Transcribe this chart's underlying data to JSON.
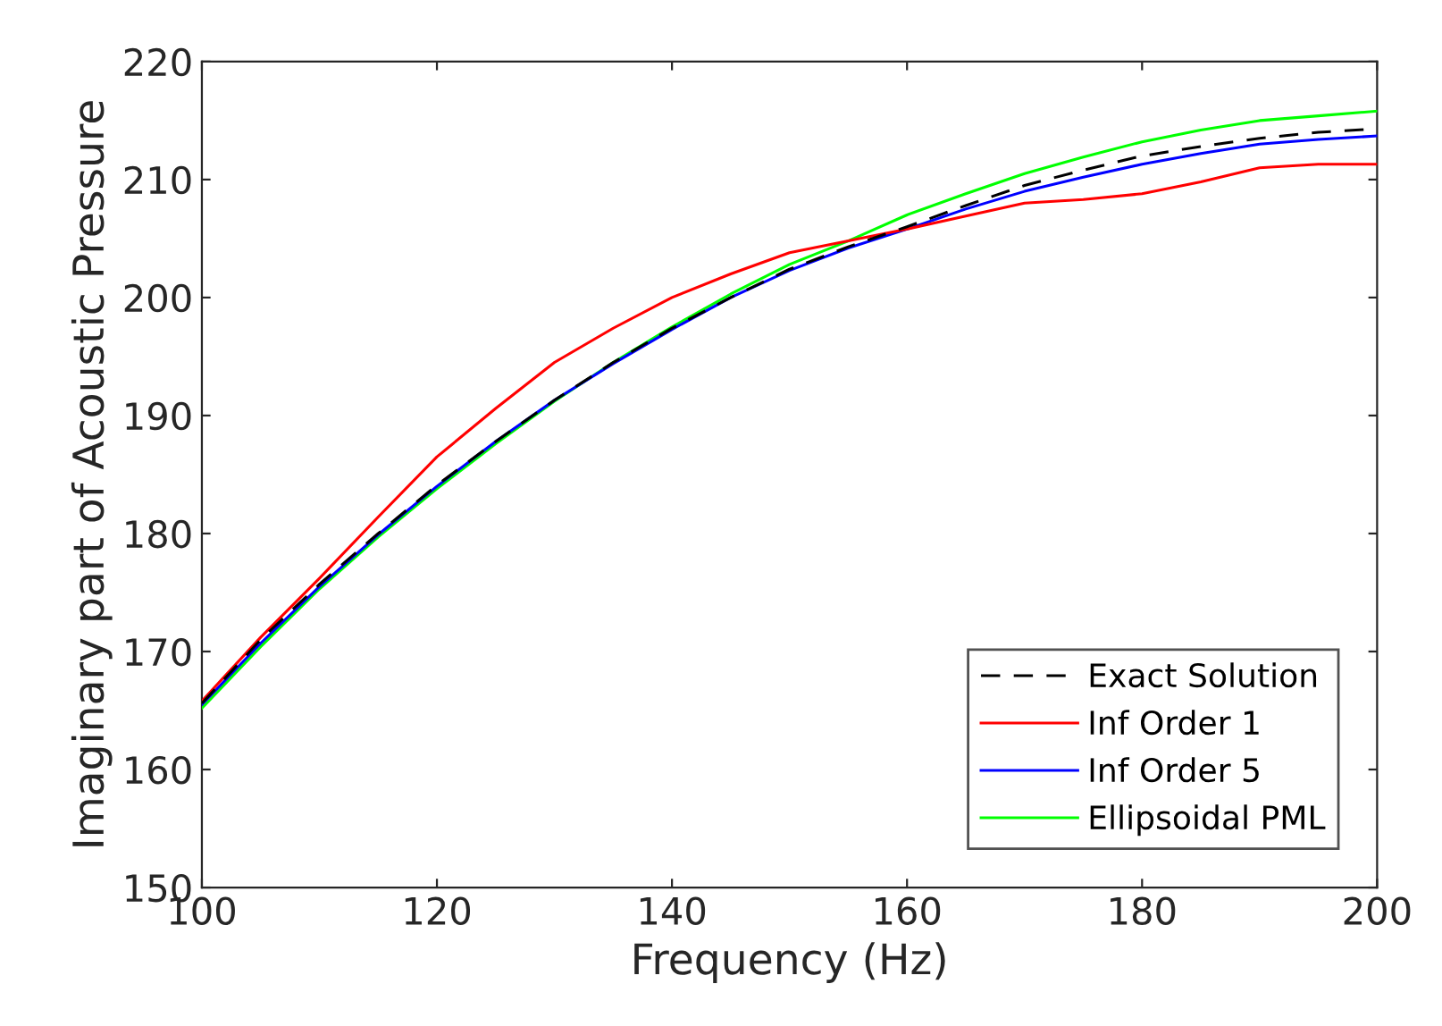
{
  "chart_data": {
    "type": "line",
    "xlabel": "Frequency (Hz)",
    "ylabel": "Imaginary part of Acoustic Pressure",
    "x": [
      100,
      105,
      110,
      115,
      120,
      125,
      130,
      135,
      140,
      145,
      150,
      155,
      160,
      165,
      170,
      175,
      180,
      185,
      190,
      195,
      200
    ],
    "series": [
      {
        "name": "Exact Solution",
        "color": "#000000",
        "line_style": "dashed",
        "values": [
          165.6,
          171,
          175.7,
          180,
          184.1,
          187.8,
          191.3,
          194.5,
          197.4,
          200,
          202.4,
          204.3,
          206,
          207.8,
          209.5,
          210.8,
          212,
          212.8,
          213.5,
          214,
          214.3
        ]
      },
      {
        "name": "Inf Order 1",
        "color": "#ff0000",
        "line_style": "solid",
        "values": [
          165.8,
          171.2,
          176.2,
          181.4,
          186.5,
          190.6,
          194.5,
          197.4,
          200,
          202,
          203.8,
          204.8,
          205.8,
          206.9,
          208,
          208.3,
          208.8,
          209.8,
          211,
          211.3,
          211.3
        ]
      },
      {
        "name": "Inf Order 5",
        "color": "#0000ff",
        "line_style": "solid",
        "values": [
          165.5,
          170.7,
          175.5,
          179.9,
          184,
          187.8,
          191.3,
          194.4,
          197.3,
          200,
          202.3,
          204.2,
          205.8,
          207.5,
          209,
          210.2,
          211.3,
          212.2,
          213,
          213.4,
          213.7
        ]
      },
      {
        "name": "Ellipsoidal PML",
        "color": "#00ff00",
        "line_style": "solid",
        "values": [
          165.2,
          170.4,
          175.3,
          179.7,
          183.8,
          187.6,
          191.2,
          194.5,
          197.5,
          200.3,
          202.8,
          204.8,
          207,
          208.8,
          210.5,
          211.9,
          213.2,
          214.2,
          215,
          215.4,
          215.8
        ]
      }
    ],
    "xlim": [
      100,
      200
    ],
    "ylim": [
      150,
      220
    ],
    "xticks": [
      100,
      120,
      140,
      160,
      180,
      200
    ],
    "yticks": [
      150,
      160,
      170,
      180,
      190,
      200,
      210,
      220
    ],
    "grid": false,
    "legend": "bottom right"
  }
}
